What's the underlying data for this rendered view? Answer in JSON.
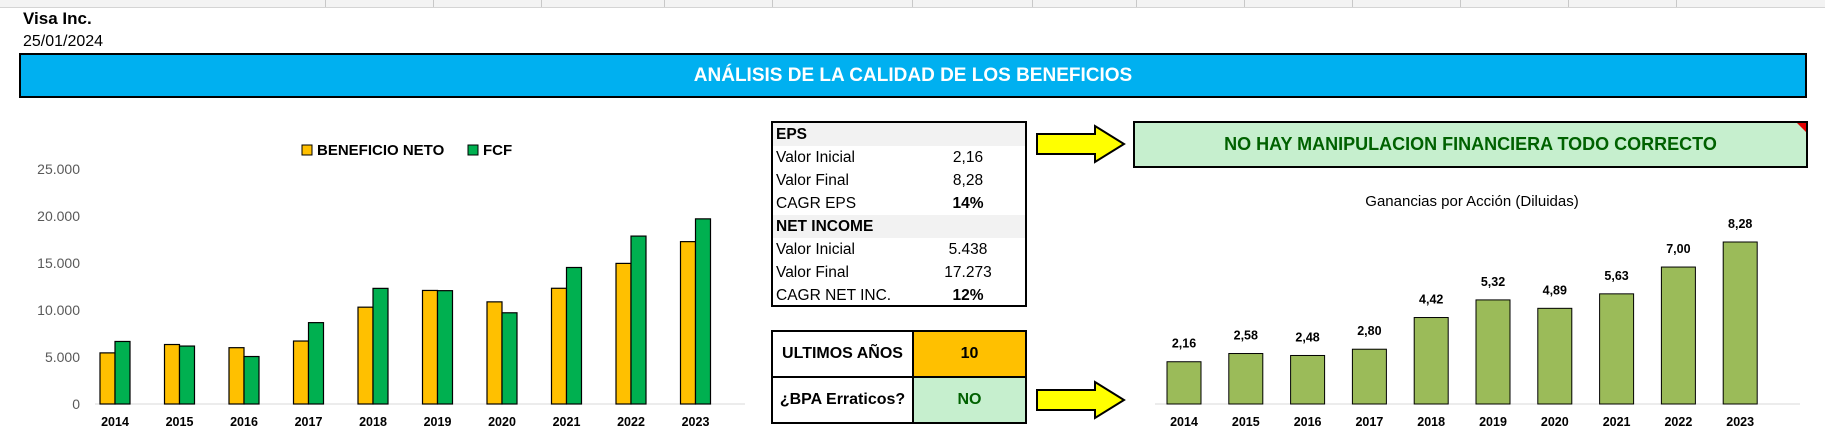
{
  "sheet": {
    "company": "Visa Inc.",
    "date": "25/01/2024",
    "banner_title": "ANÁLISIS DE LA CALIDAD DE LOS BENEFICIOS"
  },
  "eps_table": {
    "eps_header": "EPS",
    "rows_eps": [
      {
        "label": "Valor Inicial",
        "value": "2,16"
      },
      {
        "label": "Valor Final",
        "value": "8,28"
      },
      {
        "label": "CAGR EPS",
        "value": "14%"
      }
    ],
    "ni_header": "NET INCOME",
    "rows_ni": [
      {
        "label": "Valor Inicial",
        "value": "5.438"
      },
      {
        "label": "Valor Final",
        "value": "17.273"
      },
      {
        "label": "CAGR NET INC.",
        "value": "12%"
      }
    ]
  },
  "years_box": {
    "label": "ULTIMOS AÑOS",
    "value": "10",
    "value_color": "#ffc000"
  },
  "erratic_box": {
    "label": "¿BPA Erraticos?",
    "value": "NO",
    "value_color": "#c6efce"
  },
  "verdict": {
    "text": "NO HAY MANIPULACION FINANCIERA TODO CORRECTO"
  },
  "chart_data": [
    {
      "type": "bar",
      "title": "",
      "categories": [
        "2014",
        "2015",
        "2016",
        "2017",
        "2018",
        "2019",
        "2020",
        "2021",
        "2022",
        "2023"
      ],
      "series": [
        {
          "name": "BENEFICIO NETO",
          "color": "#ffc000",
          "values": [
            5438,
            6328,
            5991,
            6699,
            10301,
            12080,
            10866,
            12311,
            14957,
            17273
          ]
        },
        {
          "name": "FCF",
          "color": "#00b050",
          "values": [
            6652,
            6164,
            5051,
            8656,
            12301,
            12057,
            9704,
            14522,
            17863,
            19696
          ]
        }
      ],
      "ylim": [
        0,
        25000
      ],
      "yticks": [
        "0",
        "5.000",
        "10.000",
        "15.000",
        "20.000",
        "25.000"
      ],
      "legend": "top"
    },
    {
      "type": "bar",
      "title": "Ganancias por Acción (Diluidas)",
      "categories": [
        "2014",
        "2015",
        "2016",
        "2017",
        "2018",
        "2019",
        "2020",
        "2021",
        "2022",
        "2023"
      ],
      "series": [
        {
          "color": "#9bbb59",
          "values": [
            2.16,
            2.58,
            2.48,
            2.8,
            4.42,
            5.32,
            4.89,
            5.63,
            7.0,
            8.28
          ]
        }
      ],
      "data_labels": [
        "2,16",
        "2,58",
        "2,48",
        "2,80",
        "4,42",
        "5,32",
        "4,89",
        "5,63",
        "7,00",
        "8,28"
      ]
    }
  ]
}
